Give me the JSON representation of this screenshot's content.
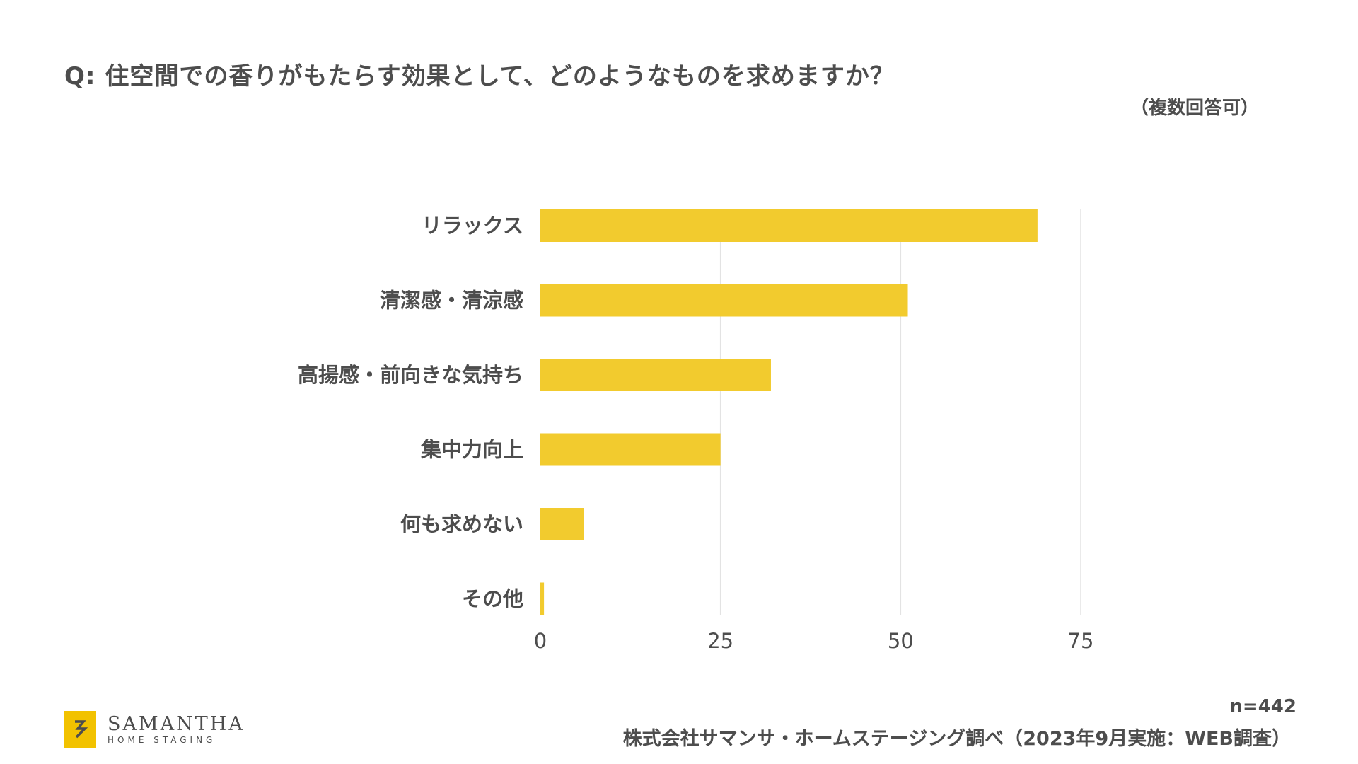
{
  "title": "Q: 住空間での香りがもたらす効果として、どのようなものを求めますか？",
  "subtitle": "（複数回答可）",
  "footer": {
    "n": "n=442",
    "source": "株式会社サマンサ・ホームステージング調べ（2023年9月実施：WEB調査）"
  },
  "logo": {
    "name": "SAMANTHA",
    "sub": "HOME STAGING",
    "mark_color": "#f2c200"
  },
  "colors": {
    "bar": "#f2cb2e",
    "grid": "#e3e3e3",
    "text": "#4d4d4d"
  },
  "chart_data": {
    "type": "bar",
    "orientation": "horizontal",
    "categories": [
      "リラックス",
      "清潔感・清涼感",
      "高揚感・前向きな気持ち",
      "集中力向上",
      "何も求めない",
      "その他"
    ],
    "values": [
      69,
      51,
      32,
      25,
      6,
      0.5
    ],
    "xlim": [
      0,
      75
    ],
    "xticks": [
      0,
      25,
      50,
      75
    ],
    "grid": true,
    "legend": "none",
    "xlabel": "",
    "ylabel": ""
  }
}
